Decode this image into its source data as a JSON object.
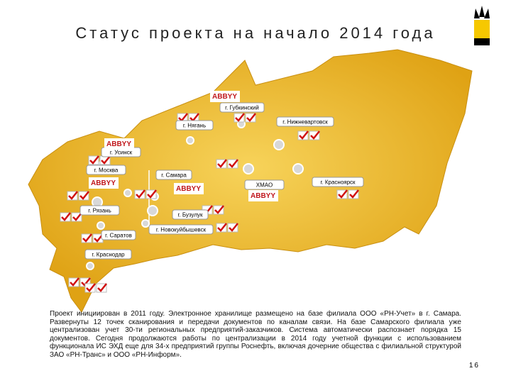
{
  "header": {
    "title": "Статус проекта на начало 2014 года"
  },
  "map": {
    "logo_text": "ABBYY",
    "cities": [
      "г. Губкинский",
      "г. Нягань",
      "г. Нижневартовск",
      "г. Усинск",
      "г. Москва",
      "г. Самара",
      "ХМАО",
      "г. Красноярск",
      "г. Рязань",
      "г. Бузулук",
      "г. Новокуйбышевск",
      "г. Саратов",
      "г. Краснодар"
    ]
  },
  "body": {
    "text": "Проект инициирован в 2011 году. Электронное хранилище размещено на базе филиала ООО «РН-Учет» в г. Самара. Развернуты 12 точек сканирования и передачи документов по каналам связи. На базе Самарского филиала уже централизован учет 30-ти региональных предприятий-заказчиков. Система автоматически распознает порядка 15 документов. Сегодня продолжаются работы по централизации в 2014 году учетной функции с использованием функционала ИС ЭХД еще для 34-х предприятий группы Роснефть, включая дочерние общества с филиальной структурой ЗАО «РН-Транс» и ООО «РН-Информ».",
    "page_number": "16"
  }
}
